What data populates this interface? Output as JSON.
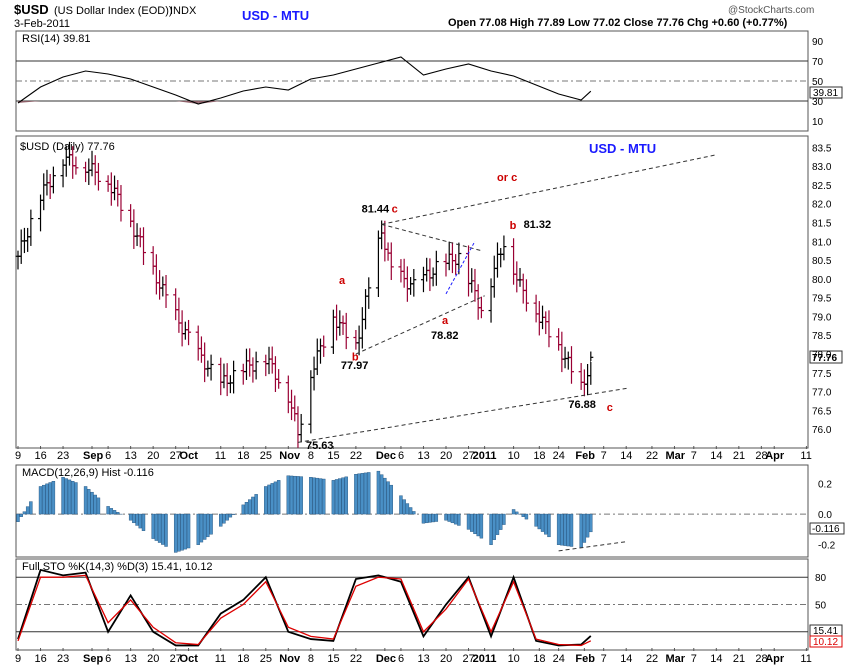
{
  "header": {
    "symbol": "$USD",
    "name": "(US Dollar Index (EOD))",
    "exchange": "INDX",
    "date": "3-Feb-2011",
    "title": "USD - MTU",
    "ohlc": "Open 77.08  High 77.89  Low 77.02  Close 77.76  Chg +0.60 (+0.77%)",
    "watermark": "@StockCharts.com"
  },
  "colors": {
    "up": "#000000",
    "down": "#990033",
    "accent": "#0000cc",
    "wave": "#cc0000",
    "hist": "#4a90c6",
    "sto_d": "#dd0000"
  },
  "chart_data": [
    {
      "type": "line",
      "panel": "rsi",
      "title": "RSI(14) 39.81",
      "last_value_label": "39.81",
      "ylim": [
        0,
        100
      ],
      "yticks": [
        90,
        70,
        50,
        30,
        10
      ],
      "reference_lines": [
        70,
        50,
        30
      ],
      "x": [
        "Aug 9",
        "Aug 16",
        "Aug 23",
        "Aug 30",
        "Sep 6",
        "Sep 13",
        "Sep 20",
        "Sep 27",
        "Oct 4",
        "Oct 11",
        "Oct 18",
        "Oct 25",
        "Nov 1",
        "Nov 8",
        "Nov 15",
        "Nov 22",
        "Nov 29",
        "Dec 6",
        "Dec 13",
        "Dec 20",
        "Dec 27",
        "Jan 3",
        "Jan 10",
        "Jan 17",
        "Jan 24",
        "Jan 31",
        "Feb 3"
      ],
      "values": [
        28,
        44,
        54,
        60,
        57,
        52,
        44,
        36,
        27,
        33,
        40,
        44,
        41,
        52,
        56,
        62,
        68,
        74,
        56,
        62,
        67,
        60,
        55,
        46,
        37,
        31,
        39.81
      ]
    },
    {
      "type": "bar",
      "panel": "price",
      "title": "$USD (Daily) 77.76",
      "subtitle": "USD - MTU",
      "last_value_label": "77.76",
      "ylim": [
        75.5,
        83.8
      ],
      "yticks": [
        83.5,
        83.0,
        82.5,
        82.0,
        81.5,
        81.0,
        80.5,
        80.0,
        79.5,
        79.0,
        78.5,
        78.0,
        77.5,
        77.0,
        76.5,
        76.0
      ],
      "xticks": [
        "9",
        "16",
        "23",
        "Sep",
        "6",
        "13",
        "20",
        "27",
        "Oct",
        "11",
        "18",
        "25",
        "Nov",
        "8",
        "15",
        "22",
        "Dec",
        "6",
        "13",
        "20",
        "27",
        "2011",
        "10",
        "18",
        "24",
        "Feb",
        "7",
        "14",
        "22",
        "Mar",
        "7",
        "14",
        "21",
        "28",
        "Apr",
        "11"
      ],
      "series": [
        {
          "x": [
            "Aug 9",
            "Aug 16",
            "Aug 23",
            "Aug 30",
            "Sep 6",
            "Sep 13",
            "Sep 20",
            "Sep 27",
            "Oct 4",
            "Oct 11",
            "Oct 18",
            "Oct 25",
            "Nov 1",
            "Nov 4",
            "Nov 8",
            "Nov 15",
            "Nov 22",
            "Nov 30",
            "Dec 3",
            "Dec 10",
            "Dec 17",
            "Dec 24",
            "Dec 31",
            "Jan 7",
            "Jan 12",
            "Jan 18",
            "Jan 24",
            "Jan 31",
            "Feb 3"
          ],
          "close": [
            80.6,
            82.2,
            83.2,
            83.0,
            82.6,
            81.5,
            80.2,
            79.0,
            78.0,
            77.2,
            77.6,
            77.9,
            76.9,
            75.9,
            77.5,
            79.0,
            78.2,
            81.3,
            80.2,
            79.8,
            80.3,
            80.6,
            79.2,
            81.0,
            79.8,
            79.0,
            78.2,
            77.1,
            77.76
          ]
        }
      ],
      "annotations": [
        {
          "text": "81.44",
          "color": "black",
          "x": "Nov 30",
          "y": 81.44
        },
        {
          "text": "c",
          "color": "red",
          "x": "Nov 30",
          "y": 81.44
        },
        {
          "text": "a",
          "color": "red",
          "x": "Nov 18",
          "y": 79.6
        },
        {
          "text": "b",
          "color": "red",
          "x": "Nov 22",
          "y": 77.8
        },
        {
          "text": "77.97",
          "color": "black",
          "x": "Nov 22",
          "y": 77.97
        },
        {
          "text": "a",
          "color": "red",
          "x": "Dec 20",
          "y": 78.9
        },
        {
          "text": "78.82",
          "color": "black",
          "x": "Dec 20",
          "y": 78.82
        },
        {
          "text": "or c",
          "color": "red",
          "x": "Jan 3",
          "y": 82.6
        },
        {
          "text": "b",
          "color": "red",
          "x": "Jan 10",
          "y": 81.3
        },
        {
          "text": "81.32",
          "color": "black",
          "x": "Jan 10",
          "y": 81.32
        },
        {
          "text": "76.88",
          "color": "black",
          "x": "Feb 1",
          "y": 76.88
        },
        {
          "text": "c",
          "color": "red",
          "x": "Feb 3",
          "y": 76.7
        },
        {
          "text": "75.63",
          "color": "black",
          "x": "Nov 4",
          "y": 75.63
        }
      ]
    },
    {
      "type": "bar",
      "panel": "macd",
      "title": "MACD(12,26,9) Hist -0.116",
      "last_value_label": "-0.116",
      "ylim": [
        -0.28,
        0.32
      ],
      "yticks": [
        0.2,
        0.0,
        -0.2
      ],
      "x": [
        "Aug 9",
        "Aug 16",
        "Aug 23",
        "Aug 30",
        "Sep 6",
        "Sep 13",
        "Sep 20",
        "Sep 27",
        "Oct 4",
        "Oct 11",
        "Oct 18",
        "Oct 25",
        "Nov 1",
        "Nov 8",
        "Nov 15",
        "Nov 22",
        "Nov 29",
        "Dec 6",
        "Dec 13",
        "Dec 20",
        "Dec 27",
        "Jan 3",
        "Jan 10",
        "Jan 17",
        "Jan 24",
        "Jan 31",
        "Feb 3"
      ],
      "values": [
        -0.05,
        0.18,
        0.24,
        0.18,
        0.05,
        -0.04,
        -0.16,
        -0.25,
        -0.2,
        -0.08,
        0.06,
        0.18,
        0.25,
        0.24,
        0.22,
        0.26,
        0.28,
        0.12,
        -0.06,
        -0.04,
        -0.1,
        -0.2,
        0.03,
        -0.08,
        -0.2,
        -0.22,
        -0.116
      ]
    },
    {
      "type": "line",
      "panel": "stochastic",
      "title": "Full STO %K(14,3) %D(3) 15.41, 10.12",
      "last_value_labels": [
        "15.41",
        "10.12"
      ],
      "ylim": [
        0,
        100
      ],
      "yticks": [
        80,
        50
      ],
      "reference_lines": [
        80,
        50,
        20
      ],
      "x": [
        "Aug 9",
        "Aug 16",
        "Aug 23",
        "Aug 30",
        "Sep 6",
        "Sep 13",
        "Sep 20",
        "Sep 27",
        "Oct 4",
        "Oct 11",
        "Oct 18",
        "Oct 25",
        "Nov 1",
        "Nov 8",
        "Nov 15",
        "Nov 22",
        "Nov 29",
        "Dec 6",
        "Dec 13",
        "Dec 20",
        "Dec 27",
        "Jan 3",
        "Jan 10",
        "Jan 17",
        "Jan 24",
        "Jan 31",
        "Feb 3"
      ],
      "series": [
        {
          "name": "%K",
          "values": [
            12,
            88,
            82,
            85,
            20,
            60,
            20,
            5,
            5,
            40,
            55,
            80,
            20,
            12,
            10,
            78,
            82,
            75,
            15,
            50,
            80,
            15,
            80,
            10,
            5,
            6,
            15.41
          ]
        },
        {
          "name": "%D",
          "values": [
            10,
            80,
            80,
            82,
            30,
            55,
            25,
            8,
            6,
            35,
            50,
            75,
            25,
            15,
            12,
            70,
            80,
            78,
            20,
            45,
            78,
            20,
            75,
            12,
            6,
            5,
            10.12
          ]
        }
      ]
    }
  ]
}
